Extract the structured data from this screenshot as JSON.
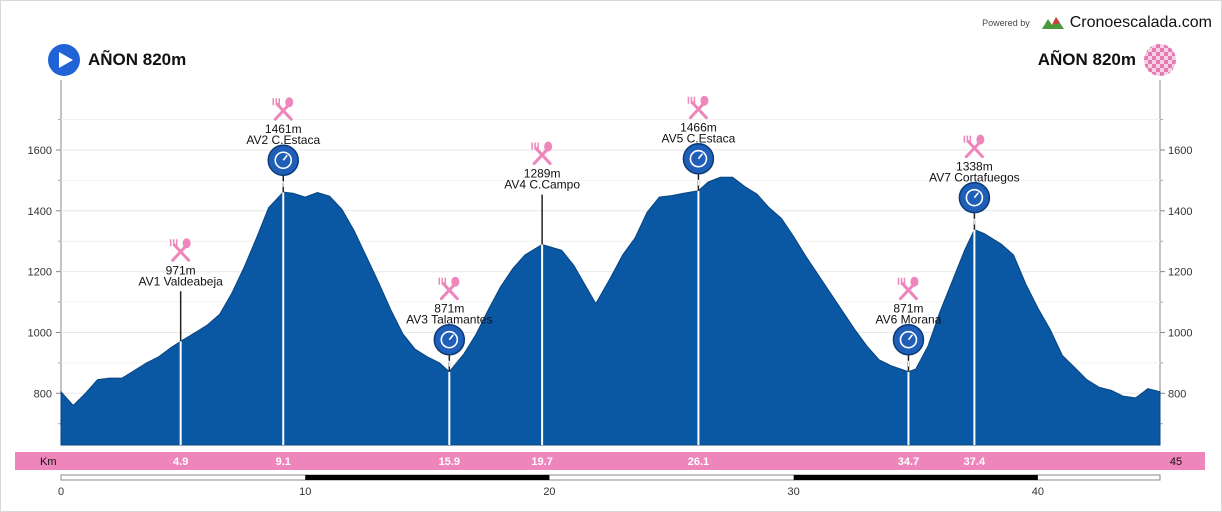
{
  "header": {
    "powered_by": "Powered by",
    "brand": "Cronoescalada.com",
    "start_label": "AÑON 820m",
    "finish_label": "AÑON 820m"
  },
  "chart_data": {
    "type": "area",
    "title": "",
    "xlabel": "Km",
    "ylabel": "",
    "xlim": [
      0,
      45
    ],
    "ylim": [
      630,
      1830
    ],
    "y_ticks": [
      800,
      1000,
      1200,
      1400,
      1600
    ],
    "x_ticks": [
      0,
      10,
      20,
      30,
      40
    ],
    "grid": true,
    "fill_color": "#0a57a4",
    "accent_color": "#ee86bb",
    "profile": [
      [
        0,
        805
      ],
      [
        0.5,
        760
      ],
      [
        1,
        800
      ],
      [
        1.5,
        845
      ],
      [
        2,
        850
      ],
      [
        2.5,
        850
      ],
      [
        3,
        875
      ],
      [
        3.5,
        900
      ],
      [
        4,
        920
      ],
      [
        4.5,
        950
      ],
      [
        4.9,
        971
      ],
      [
        5.5,
        1000
      ],
      [
        6,
        1025
      ],
      [
        6.5,
        1060
      ],
      [
        7,
        1130
      ],
      [
        7.5,
        1215
      ],
      [
        8,
        1310
      ],
      [
        8.5,
        1410
      ],
      [
        9.1,
        1461
      ],
      [
        9.5,
        1458
      ],
      [
        10,
        1445
      ],
      [
        10.5,
        1460
      ],
      [
        11,
        1448
      ],
      [
        11.5,
        1405
      ],
      [
        12,
        1335
      ],
      [
        12.5,
        1250
      ],
      [
        13,
        1165
      ],
      [
        13.5,
        1075
      ],
      [
        14,
        995
      ],
      [
        14.5,
        945
      ],
      [
        15,
        920
      ],
      [
        15.5,
        900
      ],
      [
        15.9,
        871
      ],
      [
        16.5,
        930
      ],
      [
        17,
        995
      ],
      [
        17.5,
        1075
      ],
      [
        18,
        1150
      ],
      [
        18.5,
        1210
      ],
      [
        19,
        1255
      ],
      [
        19.7,
        1289
      ],
      [
        20.5,
        1270
      ],
      [
        21,
        1220
      ],
      [
        21.5,
        1150
      ],
      [
        21.9,
        1095
      ],
      [
        22.5,
        1180
      ],
      [
        23,
        1255
      ],
      [
        23.5,
        1310
      ],
      [
        24,
        1395
      ],
      [
        24.5,
        1445
      ],
      [
        25,
        1450
      ],
      [
        25.5,
        1458
      ],
      [
        26.1,
        1466
      ],
      [
        26.5,
        1495
      ],
      [
        27,
        1510
      ],
      [
        27.5,
        1510
      ],
      [
        28,
        1480
      ],
      [
        28.5,
        1455
      ],
      [
        29,
        1410
      ],
      [
        29.5,
        1375
      ],
      [
        30,
        1315
      ],
      [
        30.5,
        1250
      ],
      [
        31,
        1190
      ],
      [
        31.5,
        1130
      ],
      [
        32,
        1070
      ],
      [
        32.5,
        1010
      ],
      [
        33,
        955
      ],
      [
        33.5,
        910
      ],
      [
        34,
        890
      ],
      [
        34.7,
        871
      ],
      [
        35,
        880
      ],
      [
        35.5,
        955
      ],
      [
        36,
        1070
      ],
      [
        36.5,
        1170
      ],
      [
        37,
        1270
      ],
      [
        37.4,
        1338
      ],
      [
        37.8,
        1325
      ],
      [
        38.5,
        1290
      ],
      [
        39,
        1255
      ],
      [
        39.5,
        1160
      ],
      [
        40,
        1080
      ],
      [
        40.5,
        1010
      ],
      [
        41,
        925
      ],
      [
        41.5,
        885
      ],
      [
        42,
        845
      ],
      [
        42.5,
        820
      ],
      [
        43,
        810
      ],
      [
        43.5,
        790
      ],
      [
        44,
        785
      ],
      [
        44.5,
        815
      ],
      [
        45,
        805
      ]
    ],
    "stations": [
      {
        "name": "AV1 Valdeabeja",
        "elevation": "971m",
        "km": 4.9,
        "km_label": "4.9",
        "timer": false
      },
      {
        "name": "AV2 C.Estaca",
        "elevation": "1461m",
        "km": 9.1,
        "km_label": "9.1",
        "timer": true
      },
      {
        "name": "AV3 Talamantes",
        "elevation": "871m",
        "km": 15.9,
        "km_label": "15.9",
        "timer": true
      },
      {
        "name": "AV4 C.Campo",
        "elevation": "1289m",
        "km": 19.7,
        "km_label": "19.7",
        "timer": false
      },
      {
        "name": "AV5 C.Estaca",
        "elevation": "1466m",
        "km": 26.1,
        "km_label": "26.1",
        "timer": true
      },
      {
        "name": "AV6 Morana",
        "elevation": "871m",
        "km": 34.7,
        "km_label": "34.7",
        "timer": true
      },
      {
        "name": "AV7 Cortafuegos",
        "elevation": "1338m",
        "km": 37.4,
        "km_label": "37.4",
        "timer": true
      }
    ],
    "timer_mark": "m",
    "km_band_label": "Km",
    "km_end_label": "45"
  }
}
